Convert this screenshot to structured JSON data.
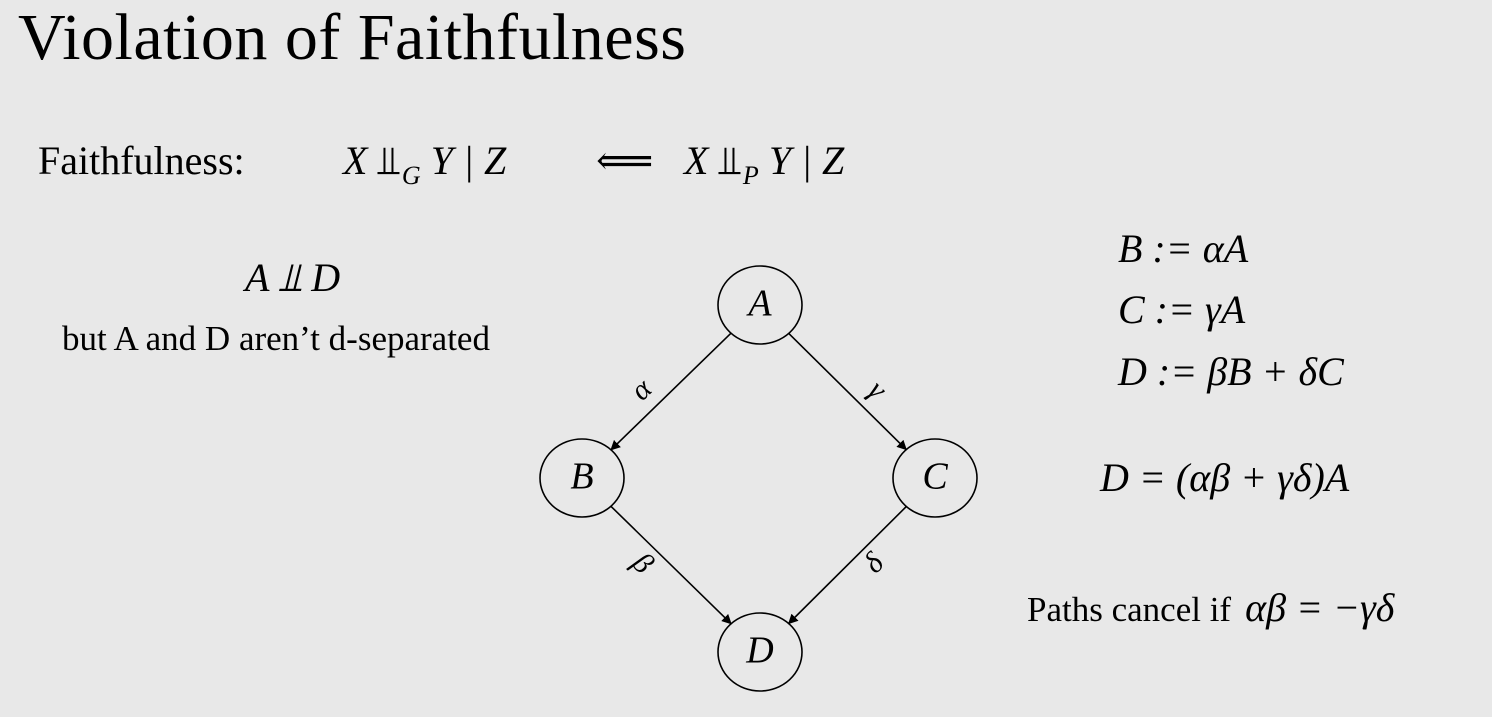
{
  "title": "Violation of Faithfulness",
  "faithfulness": {
    "label": "Faithfulness:",
    "lhs_x": "X",
    "lhs_rel": "⫫",
    "lhs_sub": "G",
    "lhs_rest": "Y | Z",
    "arrow": "⟸",
    "rhs_x": "X",
    "rhs_rel": "⫫",
    "rhs_sub": "P",
    "rhs_rest": "Y | Z"
  },
  "independence": {
    "formula": "A ⫫ D",
    "note": "but A and D aren’t d-separated"
  },
  "equations": {
    "b": "B := αA",
    "c": "C := γA",
    "d": "D := βB + δC",
    "total": "D = (αβ + γδ)A"
  },
  "paths_cancel": {
    "label": "Paths cancel if",
    "condition": "αβ = −γδ"
  },
  "graph": {
    "nodes": [
      {
        "id": "A",
        "label": "A"
      },
      {
        "id": "B",
        "label": "B"
      },
      {
        "id": "C",
        "label": "C"
      },
      {
        "id": "D",
        "label": "D"
      }
    ],
    "edges": [
      {
        "from": "A",
        "to": "B",
        "label": "α"
      },
      {
        "from": "A",
        "to": "C",
        "label": "γ"
      },
      {
        "from": "B",
        "to": "D",
        "label": "β"
      },
      {
        "from": "C",
        "to": "D",
        "label": "δ"
      }
    ]
  }
}
